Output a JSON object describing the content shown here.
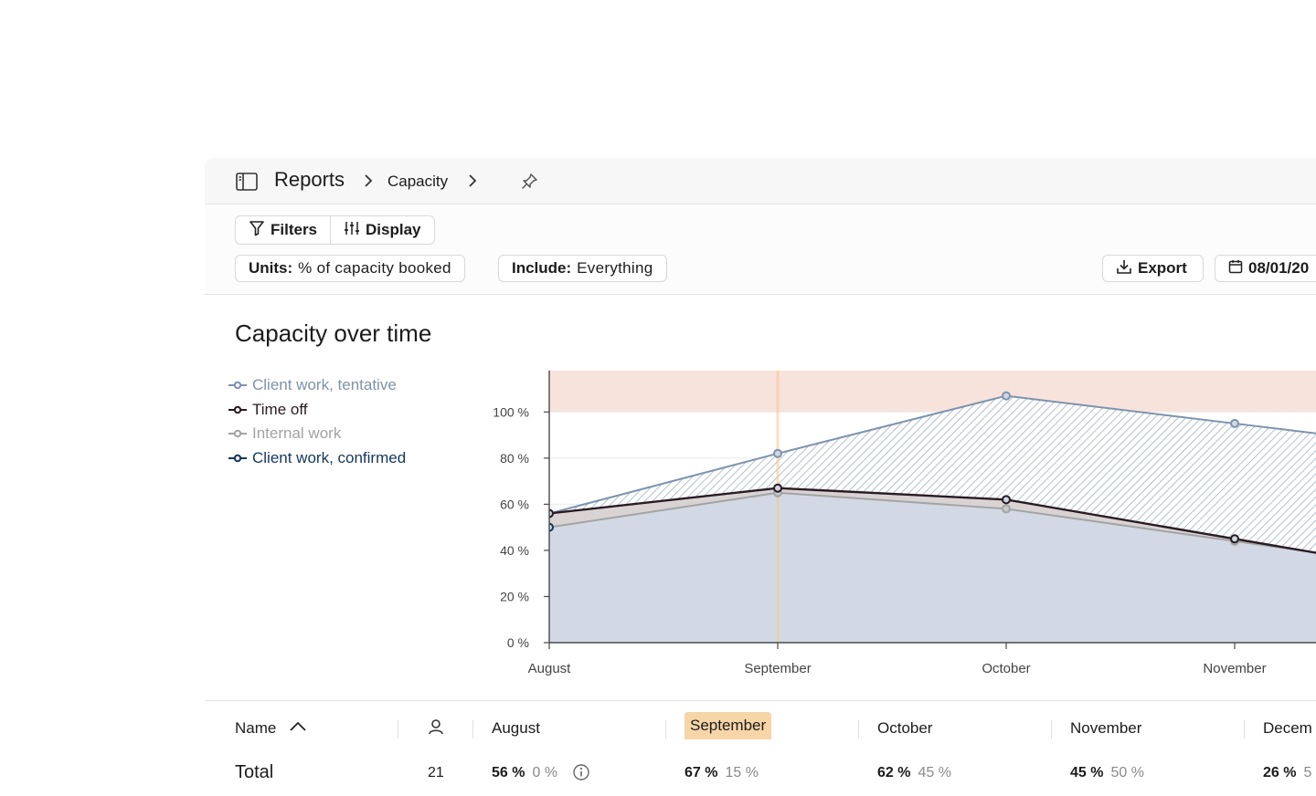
{
  "breadcrumb": {
    "root": "Reports",
    "current": "Capacity"
  },
  "toolbar": {
    "filters_label": "Filters",
    "display_label": "Display",
    "units_key": "Units:",
    "units_value": "% of capacity booked",
    "include_key": "Include:",
    "include_value": "Everything",
    "export_label": "Export",
    "date_label": "08/01/20"
  },
  "section": {
    "title": "Capacity over time"
  },
  "chart_data": {
    "type": "area",
    "title": "Capacity over time",
    "categories": [
      "August",
      "September",
      "October",
      "November"
    ],
    "y_ticks": [
      "0 %",
      "20 %",
      "40 %",
      "60 %",
      "80 %",
      "100 %"
    ],
    "ylim": [
      0,
      118
    ],
    "over_capacity_threshold": 100,
    "highlighted_category": "September",
    "legend_position": "top-left",
    "series": [
      {
        "name": "Client work, tentative",
        "values": [
          56,
          82,
          107,
          95
        ],
        "color": "#7e93ad"
      },
      {
        "name": "Time off",
        "values": [
          56,
          67,
          62,
          45
        ],
        "color": "#2a1b22"
      },
      {
        "name": "Internal work",
        "values": [
          50,
          65,
          58,
          44
        ],
        "color": "#a3a3a3"
      },
      {
        "name": "Client work, confirmed",
        "values": [
          50,
          65,
          58,
          44
        ],
        "color": "#14365f"
      }
    ]
  },
  "table": {
    "headers": {
      "name": "Name",
      "months": [
        "August",
        "September",
        "October",
        "November",
        "Decem"
      ]
    },
    "total": {
      "label": "Total",
      "people": "21",
      "cells": [
        {
          "primary": "56 %",
          "secondary": "0 %"
        },
        {
          "primary": "67 %",
          "secondary": "15 %"
        },
        {
          "primary": "62 %",
          "secondary": "45 %"
        },
        {
          "primary": "45 %",
          "secondary": "50 %"
        },
        {
          "primary": "26 %",
          "secondary": "5"
        }
      ]
    }
  }
}
